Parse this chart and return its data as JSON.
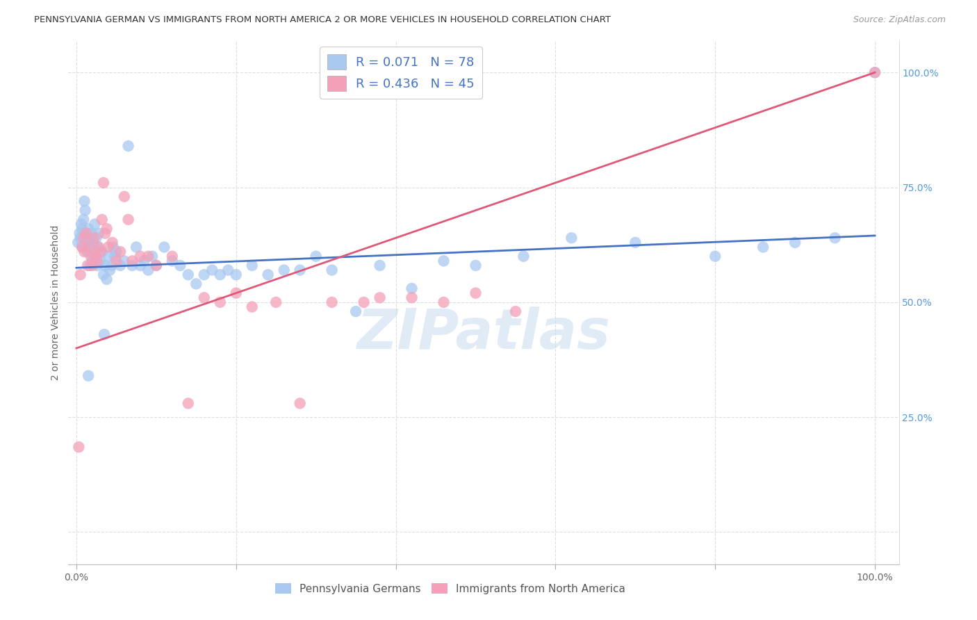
{
  "title": "PENNSYLVANIA GERMAN VS IMMIGRANTS FROM NORTH AMERICA 2 OR MORE VEHICLES IN HOUSEHOLD CORRELATION CHART",
  "source": "Source: ZipAtlas.com",
  "ylabel": "2 or more Vehicles in Household",
  "blue_R": 0.071,
  "blue_N": 78,
  "pink_R": 0.436,
  "pink_N": 45,
  "blue_color": "#A8C8F0",
  "pink_color": "#F4A0B8",
  "blue_line_color": "#4472C4",
  "pink_line_color": "#E05878",
  "xlim": [
    -0.01,
    1.03
  ],
  "ylim": [
    -0.07,
    1.07
  ],
  "legend_label_blue": "Pennsylvania Germans",
  "legend_label_pink": "Immigrants from North America",
  "watermark": "ZIPatlas",
  "background_color": "#FFFFFF",
  "grid_color": "#DDDDDD",
  "blue_line_x0": 0.0,
  "blue_line_y0": 0.575,
  "blue_line_x1": 1.0,
  "blue_line_y1": 0.645,
  "pink_line_x0": 0.0,
  "pink_line_y0": 0.4,
  "pink_line_x1": 1.0,
  "pink_line_y1": 1.0,
  "blue_points_x": [
    0.002,
    0.004,
    0.005,
    0.006,
    0.007,
    0.008,
    0.009,
    0.01,
    0.011,
    0.012,
    0.013,
    0.014,
    0.015,
    0.016,
    0.017,
    0.018,
    0.019,
    0.02,
    0.021,
    0.022,
    0.023,
    0.024,
    0.025,
    0.026,
    0.027,
    0.028,
    0.03,
    0.032,
    0.034,
    0.036,
    0.038,
    0.04,
    0.042,
    0.044,
    0.046,
    0.048,
    0.05,
    0.055,
    0.06,
    0.065,
    0.07,
    0.075,
    0.08,
    0.085,
    0.09,
    0.095,
    0.1,
    0.11,
    0.12,
    0.13,
    0.14,
    0.15,
    0.16,
    0.17,
    0.18,
    0.19,
    0.2,
    0.22,
    0.24,
    0.26,
    0.28,
    0.3,
    0.32,
    0.35,
    0.38,
    0.42,
    0.46,
    0.5,
    0.56,
    0.62,
    0.7,
    0.8,
    0.86,
    0.9,
    0.95,
    1.0,
    0.035,
    0.015
  ],
  "blue_points_y": [
    0.63,
    0.65,
    0.64,
    0.67,
    0.66,
    0.62,
    0.68,
    0.72,
    0.7,
    0.65,
    0.63,
    0.61,
    0.66,
    0.64,
    0.58,
    0.62,
    0.65,
    0.59,
    0.63,
    0.61,
    0.67,
    0.6,
    0.64,
    0.58,
    0.62,
    0.65,
    0.59,
    0.61,
    0.56,
    0.58,
    0.55,
    0.6,
    0.57,
    0.58,
    0.62,
    0.6,
    0.61,
    0.58,
    0.59,
    0.84,
    0.58,
    0.62,
    0.58,
    0.59,
    0.57,
    0.6,
    0.58,
    0.62,
    0.59,
    0.58,
    0.56,
    0.54,
    0.56,
    0.57,
    0.56,
    0.57,
    0.56,
    0.58,
    0.56,
    0.57,
    0.57,
    0.6,
    0.57,
    0.48,
    0.58,
    0.53,
    0.59,
    0.58,
    0.6,
    0.64,
    0.63,
    0.6,
    0.62,
    0.63,
    0.64,
    1.0,
    0.43,
    0.34
  ],
  "pink_points_x": [
    0.003,
    0.005,
    0.007,
    0.009,
    0.01,
    0.012,
    0.014,
    0.016,
    0.018,
    0.02,
    0.022,
    0.024,
    0.026,
    0.028,
    0.03,
    0.032,
    0.034,
    0.036,
    0.038,
    0.04,
    0.045,
    0.05,
    0.055,
    0.06,
    0.065,
    0.07,
    0.08,
    0.09,
    0.1,
    0.12,
    0.14,
    0.16,
    0.18,
    0.2,
    0.22,
    0.25,
    0.28,
    0.32,
    0.36,
    0.38,
    0.42,
    0.46,
    0.5,
    0.55,
    1.0
  ],
  "pink_points_y": [
    0.185,
    0.56,
    0.62,
    0.64,
    0.61,
    0.65,
    0.58,
    0.62,
    0.6,
    0.58,
    0.64,
    0.6,
    0.59,
    0.62,
    0.61,
    0.68,
    0.76,
    0.65,
    0.66,
    0.62,
    0.63,
    0.59,
    0.61,
    0.73,
    0.68,
    0.59,
    0.6,
    0.6,
    0.58,
    0.6,
    0.28,
    0.51,
    0.5,
    0.52,
    0.49,
    0.5,
    0.28,
    0.5,
    0.5,
    0.51,
    0.51,
    0.5,
    0.52,
    0.48,
    1.0
  ]
}
